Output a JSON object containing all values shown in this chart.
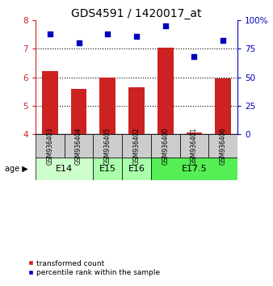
{
  "title": "GDS4591 / 1420017_at",
  "samples": [
    "GSM936403",
    "GSM936404",
    "GSM936405",
    "GSM936402",
    "GSM936400",
    "GSM936401",
    "GSM936406"
  ],
  "red_bars": [
    6.22,
    5.58,
    6.0,
    5.65,
    7.02,
    4.06,
    5.95
  ],
  "blue_dots": [
    88,
    80,
    88,
    86,
    95,
    68,
    82
  ],
  "groups": [
    {
      "label": "E14",
      "samples": [
        "GSM936403",
        "GSM936404"
      ],
      "color": "#ccffcc"
    },
    {
      "label": "E15",
      "samples": [
        "GSM936405"
      ],
      "color": "#aaffaa"
    },
    {
      "label": "E16",
      "samples": [
        "GSM936402"
      ],
      "color": "#aaffaa"
    },
    {
      "label": "E17.5",
      "samples": [
        "GSM936400",
        "GSM936401",
        "GSM936406"
      ],
      "color": "#55ee55"
    }
  ],
  "ylim_left": [
    4,
    8
  ],
  "ylim_right": [
    0,
    100
  ],
  "yticks_left": [
    4,
    5,
    6,
    7,
    8
  ],
  "yticks_right": [
    0,
    25,
    50,
    75,
    100
  ],
  "ytick_labels_right": [
    "0",
    "25",
    "50",
    "75",
    "100%"
  ],
  "bar_color": "#cc2222",
  "dot_color": "#0000bb",
  "bar_width": 0.55,
  "legend_red": "transformed count",
  "legend_blue": "percentile rank within the sample",
  "grid_color": "black",
  "tick_label_fontsize": 7.5,
  "title_fontsize": 10,
  "sample_box_color": "#cccccc",
  "sample_label_fontsize": 5.5,
  "group_label_fontsize": 8
}
